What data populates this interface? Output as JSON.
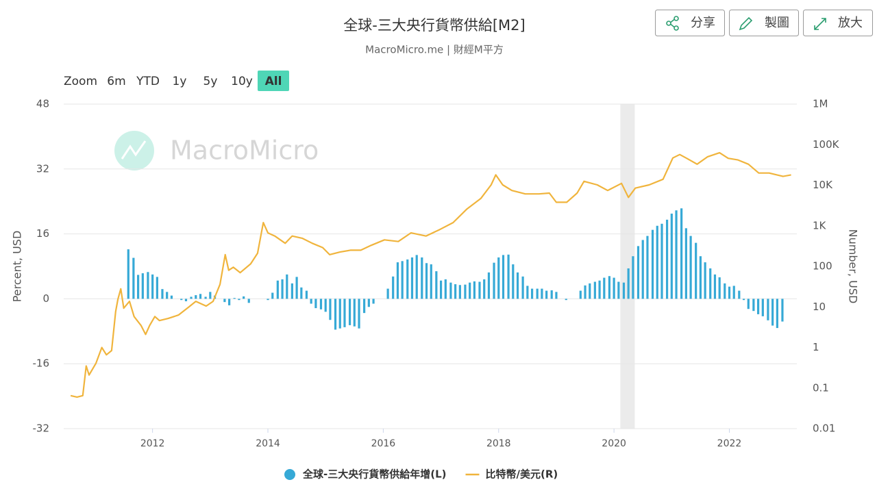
{
  "header": {
    "title": "全球-三大央行貨幣供給[M2]",
    "subtitle": "MacroMicro.me | 財經M平方",
    "buttons": [
      "分享",
      "製圖",
      "放大"
    ]
  },
  "zoom": {
    "label": "Zoom",
    "options": [
      "6m",
      "YTD",
      "1y",
      "5y",
      "10y",
      "All"
    ],
    "selected": "All"
  },
  "chart_data": {
    "type": "combo",
    "watermark": "MacroMicro",
    "ylabel": "Percent, USD",
    "y2label": "Number, USD",
    "xlim": [
      2010.46,
      2023.17
    ],
    "xticks": [
      2012,
      2014,
      2016,
      2018,
      2020,
      2022
    ],
    "ylim": [
      -32,
      48
    ],
    "yticks": [
      -32,
      -16,
      0,
      16,
      32,
      48
    ],
    "y2lim": [
      0.01,
      1000000
    ],
    "y2log": true,
    "y2ticks": [
      0.01,
      0.1,
      1,
      10,
      100,
      {
        "value": 1000,
        "label": "1K"
      },
      {
        "value": 10000,
        "label": "10K"
      },
      {
        "value": 100000,
        "label": "100K"
      },
      {
        "value": 1000000,
        "label": "1M"
      }
    ],
    "grid": true,
    "legend": "bottom",
    "shaded": [
      [
        2020.11,
        2020.36
      ]
    ],
    "shade_color": "#ebebeb",
    "series": [
      {
        "name": "全球-三大央行貨幣供給年增(L)",
        "type": "bar",
        "color": "#36a9d6",
        "axis": "y",
        "x": [
          2011.58,
          2011.67,
          2011.75,
          2011.83,
          2011.92,
          2012,
          2012.08,
          2012.17,
          2012.25,
          2012.33,
          2012.42,
          2012.5,
          2012.58,
          2012.67,
          2012.75,
          2012.83,
          2012.92,
          2013,
          2013.08,
          2013.17,
          2013.25,
          2013.33,
          2013.42,
          2013.5,
          2013.58,
          2013.67,
          2013.75,
          2013.83,
          2013.92,
          2014,
          2014.08,
          2014.17,
          2014.25,
          2014.33,
          2014.42,
          2014.5,
          2014.58,
          2014.67,
          2014.75,
          2014.83,
          2014.92,
          2015,
          2015.08,
          2015.17,
          2015.25,
          2015.33,
          2015.42,
          2015.5,
          2015.58,
          2015.67,
          2015.75,
          2015.83,
          2015.92,
          2016,
          2016.08,
          2016.17,
          2016.25,
          2016.33,
          2016.42,
          2016.5,
          2016.58,
          2016.67,
          2016.75,
          2016.83,
          2016.92,
          2017,
          2017.08,
          2017.17,
          2017.25,
          2017.33,
          2017.42,
          2017.5,
          2017.58,
          2017.67,
          2017.75,
          2017.83,
          2017.92,
          2018,
          2018.08,
          2018.17,
          2018.25,
          2018.33,
          2018.42,
          2018.5,
          2018.58,
          2018.67,
          2018.75,
          2018.83,
          2018.92,
          2019,
          2019.08,
          2019.17,
          2019.25,
          2019.33,
          2019.42,
          2019.5,
          2019.58,
          2019.67,
          2019.75,
          2019.83,
          2019.92,
          2020,
          2020.08,
          2020.17,
          2020.25,
          2020.33,
          2020.42,
          2020.5,
          2020.58,
          2020.67,
          2020.75,
          2020.83,
          2020.92,
          2021,
          2021.08,
          2021.17,
          2021.25,
          2021.33,
          2021.42,
          2021.5,
          2021.58,
          2021.67,
          2021.75,
          2021.83,
          2021.92,
          2022,
          2022.08,
          2022.17,
          2022.25,
          2022.33,
          2022.42,
          2022.5,
          2022.58,
          2022.67,
          2022.75,
          2022.83,
          2022.92
        ],
        "values": [
          12.2,
          10.1,
          5.9,
          6.3,
          6.6,
          6.0,
          5.4,
          2.4,
          1.7,
          0.8,
          0,
          -0.3,
          -0.6,
          0.5,
          0.9,
          1.2,
          0.5,
          1.7,
          0.8,
          0,
          -0.8,
          -1.6,
          0.2,
          -0.3,
          0.6,
          -1.0,
          0,
          0,
          0,
          -0.3,
          1.5,
          4.5,
          4.8,
          6.0,
          3.8,
          5.4,
          2.8,
          2.0,
          -1.2,
          -2.3,
          -2.6,
          -3.2,
          -5.2,
          -7.6,
          -7.3,
          -7.0,
          -6.5,
          -6.8,
          -7.3,
          -3.5,
          -2.0,
          -1.2,
          0,
          0,
          2.5,
          5.5,
          9.0,
          9.3,
          9.7,
          10.2,
          10.8,
          10.2,
          8.8,
          8.5,
          6.8,
          4.5,
          4.8,
          4.0,
          3.6,
          3.4,
          3.5,
          4.0,
          4.3,
          4.2,
          4.8,
          6.5,
          8.9,
          10.2,
          10.8,
          10.9,
          8.5,
          6.5,
          5.5,
          3.2,
          2.5,
          2.5,
          2.5,
          2.0,
          2.1,
          1.7,
          0,
          -0.3,
          0,
          0,
          2.0,
          3.3,
          3.8,
          4.2,
          4.5,
          5.2,
          5.6,
          5.2,
          4.2,
          4.0,
          7.5,
          10.5,
          13.0,
          14.5,
          15.5,
          17.0,
          18.0,
          18.5,
          19.5,
          21.0,
          21.8,
          22.3,
          17.4,
          15.5,
          13.8,
          10.5,
          9.0,
          7.5,
          6.0,
          5.3,
          3.8,
          3.0,
          3.2,
          2.0,
          -0.3,
          -2.5,
          -3.0,
          -3.8,
          -4.3,
          -5.3,
          -6.6,
          -7.2,
          -5.6
        ]
      },
      {
        "name": "比特幣/美元(R)",
        "type": "line",
        "color": "#f0b43c",
        "axis": "y2",
        "x": [
          2010.58,
          2010.69,
          2010.79,
          2010.85,
          2010.9,
          2011.02,
          2011.12,
          2011.2,
          2011.29,
          2011.36,
          2011.4,
          2011.45,
          2011.5,
          2011.6,
          2011.68,
          2011.8,
          2011.88,
          2011.95,
          2012.04,
          2012.12,
          2012.27,
          2012.45,
          2012.63,
          2012.75,
          2012.93,
          2013.05,
          2013.17,
          2013.26,
          2013.32,
          2013.4,
          2013.52,
          2013.7,
          2013.82,
          2013.92,
          2014,
          2014.12,
          2014.3,
          2014.42,
          2014.6,
          2014.77,
          2014.95,
          2015.07,
          2015.25,
          2015.43,
          2015.61,
          2015.79,
          2016.02,
          2016.26,
          2016.48,
          2016.74,
          2016.98,
          2017.21,
          2017.45,
          2017.69,
          2017.87,
          2017.95,
          2018.07,
          2018.23,
          2018.46,
          2018.7,
          2018.88,
          2019,
          2019.18,
          2019.36,
          2019.48,
          2019.71,
          2019.89,
          2020.13,
          2020.25,
          2020.37,
          2020.61,
          2020.85,
          2021.02,
          2021.14,
          2021.26,
          2021.44,
          2021.62,
          2021.83,
          2021.98,
          2022.15,
          2022.33,
          2022.51,
          2022.69,
          2022.93,
          2023.07
        ],
        "values": [
          0.065,
          0.06,
          0.065,
          0.35,
          0.21,
          0.41,
          1.0,
          0.66,
          0.84,
          7.7,
          15.5,
          28,
          9.3,
          13.7,
          5.8,
          3.5,
          2.1,
          3.5,
          5.8,
          4.6,
          5.2,
          6.3,
          10,
          13.7,
          10.5,
          13.7,
          36,
          194,
          80,
          95,
          70,
          115,
          210,
          1200,
          670,
          560,
          370,
          560,
          490,
          370,
          290,
          194,
          225,
          250,
          250,
          330,
          450,
          410,
          670,
          560,
          810,
          1200,
          2600,
          4700,
          10200,
          18000,
          10200,
          7400,
          6100,
          6100,
          6400,
          3800,
          3800,
          6400,
          12500,
          10200,
          7400,
          11100,
          5000,
          8500,
          10200,
          14000,
          47000,
          57000,
          46000,
          33000,
          50000,
          63000,
          46000,
          42000,
          33000,
          20000,
          20000,
          16500,
          18000
        ]
      }
    ]
  }
}
